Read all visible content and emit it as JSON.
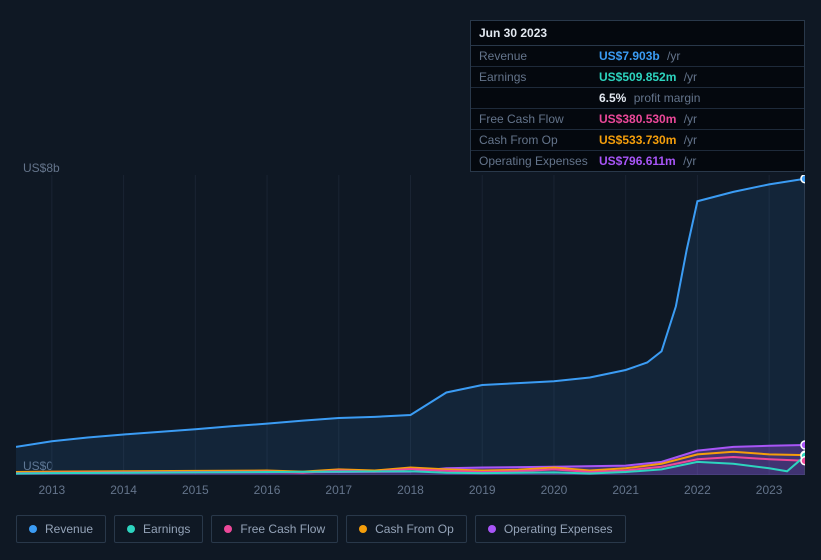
{
  "tooltip": {
    "date": "Jun 30 2023",
    "rows": [
      {
        "label": "Revenue",
        "value": "US$7.903b",
        "suffix": "/yr",
        "color": "#3b9cf4"
      },
      {
        "label": "Earnings",
        "value": "US$509.852m",
        "suffix": "/yr",
        "color": "#2dd4bf"
      },
      {
        "label": "",
        "value": "6.5%",
        "suffix": "profit margin",
        "color": "#e2e8f0"
      },
      {
        "label": "Free Cash Flow",
        "value": "US$380.530m",
        "suffix": "/yr",
        "color": "#ec4899"
      },
      {
        "label": "Cash From Op",
        "value": "US$533.730m",
        "suffix": "/yr",
        "color": "#f59e0b"
      },
      {
        "label": "Operating Expenses",
        "value": "US$796.611m",
        "suffix": "/yr",
        "color": "#a855f7"
      }
    ]
  },
  "chart": {
    "y_min": 0,
    "y_max": 8,
    "y_label_top": "US$8b",
    "y_label_bottom": "US$0",
    "background": "#0f1824",
    "grid_color": "#1a2433",
    "x_start": 2012.5,
    "x_end": 2023.5,
    "x_ticks": [
      2013,
      2014,
      2015,
      2016,
      2017,
      2018,
      2019,
      2020,
      2021,
      2022,
      2023
    ],
    "cursor_x": 2023.5,
    "series": [
      {
        "name": "Revenue",
        "color": "#3b9cf4",
        "fill": "rgba(59,156,244,0.10)",
        "width": 2,
        "points": [
          [
            2012.5,
            0.75
          ],
          [
            2013,
            0.9
          ],
          [
            2013.5,
            1.0
          ],
          [
            2014,
            1.08
          ],
          [
            2014.5,
            1.15
          ],
          [
            2015,
            1.22
          ],
          [
            2015.5,
            1.3
          ],
          [
            2016,
            1.37
          ],
          [
            2016.5,
            1.45
          ],
          [
            2017,
            1.52
          ],
          [
            2017.5,
            1.55
          ],
          [
            2018,
            1.6
          ],
          [
            2018.5,
            2.2
          ],
          [
            2019,
            2.4
          ],
          [
            2019.5,
            2.45
          ],
          [
            2020,
            2.5
          ],
          [
            2020.5,
            2.6
          ],
          [
            2021,
            2.8
          ],
          [
            2021.3,
            3.0
          ],
          [
            2021.5,
            3.3
          ],
          [
            2021.7,
            4.5
          ],
          [
            2021.85,
            6.0
          ],
          [
            2022,
            7.3
          ],
          [
            2022.5,
            7.55
          ],
          [
            2023,
            7.75
          ],
          [
            2023.5,
            7.9
          ]
        ]
      },
      {
        "name": "Operating Expenses",
        "color": "#a855f7",
        "fill": "rgba(168,85,247,0.30)",
        "width": 1.5,
        "points": [
          [
            2012.5,
            0.05
          ],
          [
            2014,
            0.06
          ],
          [
            2016,
            0.07
          ],
          [
            2017,
            0.08
          ],
          [
            2018,
            0.09
          ],
          [
            2018.5,
            0.18
          ],
          [
            2019,
            0.2
          ],
          [
            2020,
            0.22
          ],
          [
            2021,
            0.25
          ],
          [
            2021.5,
            0.35
          ],
          [
            2022,
            0.65
          ],
          [
            2022.5,
            0.75
          ],
          [
            2023,
            0.78
          ],
          [
            2023.5,
            0.8
          ]
        ]
      },
      {
        "name": "Cash From Op",
        "color": "#f59e0b",
        "fill": "none",
        "width": 2,
        "points": [
          [
            2012.5,
            0.08
          ],
          [
            2013,
            0.09
          ],
          [
            2014,
            0.1
          ],
          [
            2015,
            0.11
          ],
          [
            2016,
            0.12
          ],
          [
            2016.5,
            0.09
          ],
          [
            2017,
            0.15
          ],
          [
            2017.5,
            0.12
          ],
          [
            2018,
            0.2
          ],
          [
            2018.5,
            0.15
          ],
          [
            2019,
            0.12
          ],
          [
            2019.5,
            0.14
          ],
          [
            2020,
            0.2
          ],
          [
            2020.5,
            0.12
          ],
          [
            2021,
            0.18
          ],
          [
            2021.5,
            0.3
          ],
          [
            2022,
            0.55
          ],
          [
            2022.5,
            0.62
          ],
          [
            2023,
            0.55
          ],
          [
            2023.5,
            0.53
          ]
        ]
      },
      {
        "name": "Free Cash Flow",
        "color": "#ec4899",
        "fill": "none",
        "width": 2,
        "points": [
          [
            2012.5,
            0.05
          ],
          [
            2013,
            0.06
          ],
          [
            2014,
            0.07
          ],
          [
            2015,
            0.08
          ],
          [
            2016,
            0.09
          ],
          [
            2016.5,
            0.06
          ],
          [
            2017,
            0.12
          ],
          [
            2017.5,
            0.09
          ],
          [
            2018,
            0.16
          ],
          [
            2018.5,
            0.11
          ],
          [
            2019,
            0.08
          ],
          [
            2019.5,
            0.1
          ],
          [
            2020,
            0.15
          ],
          [
            2020.5,
            0.08
          ],
          [
            2021,
            0.12
          ],
          [
            2021.5,
            0.22
          ],
          [
            2022,
            0.42
          ],
          [
            2022.5,
            0.48
          ],
          [
            2023,
            0.42
          ],
          [
            2023.5,
            0.38
          ]
        ]
      },
      {
        "name": "Earnings",
        "color": "#2dd4bf",
        "fill": "none",
        "width": 2,
        "points": [
          [
            2012.5,
            0.04
          ],
          [
            2013,
            0.05
          ],
          [
            2014,
            0.06
          ],
          [
            2015,
            0.07
          ],
          [
            2016,
            0.08
          ],
          [
            2017,
            0.09
          ],
          [
            2018,
            0.1
          ],
          [
            2018.5,
            0.06
          ],
          [
            2019,
            0.05
          ],
          [
            2020,
            0.07
          ],
          [
            2020.5,
            0.04
          ],
          [
            2021,
            0.08
          ],
          [
            2021.5,
            0.15
          ],
          [
            2022,
            0.35
          ],
          [
            2022.5,
            0.3
          ],
          [
            2023,
            0.18
          ],
          [
            2023.25,
            0.1
          ],
          [
            2023.5,
            0.51
          ]
        ]
      }
    ],
    "markers": [
      {
        "x": 2023.5,
        "y": 7.9,
        "color": "#3b9cf4"
      },
      {
        "x": 2023.5,
        "y": 0.8,
        "color": "#a855f7"
      },
      {
        "x": 2023.5,
        "y": 0.53,
        "color": "#f59e0b"
      },
      {
        "x": 2023.5,
        "y": 0.51,
        "color": "#2dd4bf"
      },
      {
        "x": 2023.5,
        "y": 0.38,
        "color": "#ec4899"
      }
    ]
  },
  "legend": [
    {
      "label": "Revenue",
      "color": "#3b9cf4"
    },
    {
      "label": "Earnings",
      "color": "#2dd4bf"
    },
    {
      "label": "Free Cash Flow",
      "color": "#ec4899"
    },
    {
      "label": "Cash From Op",
      "color": "#f59e0b"
    },
    {
      "label": "Operating Expenses",
      "color": "#a855f7"
    }
  ]
}
